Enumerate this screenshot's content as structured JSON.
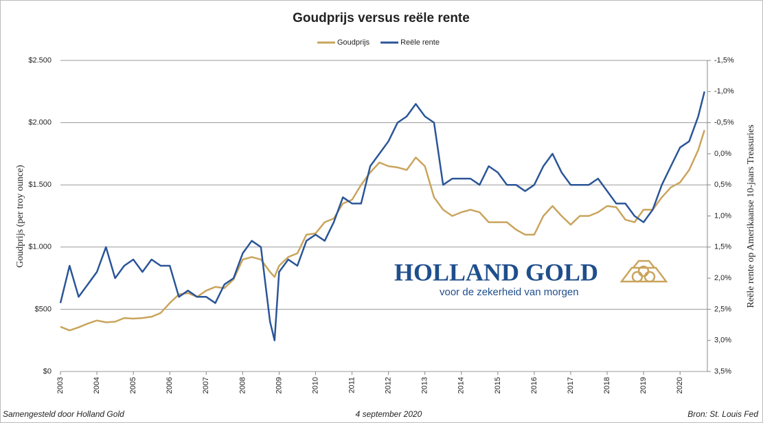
{
  "chart_data": {
    "type": "line",
    "title": "Goudprijs versus reële rente",
    "ylabel": "Goudprijs (per troy ounce)",
    "y2label": "Reële rente op Amerikaanse 10-jaars Treasuries",
    "logo": {
      "name": "HOLLAND GOLD",
      "tagline": "voor de zekerheid van morgen"
    },
    "footer": {
      "left": "Samengesteld door Holland Gold",
      "center": "4 september 2020",
      "right": "Bron: St. Louis Fed"
    },
    "x": [
      2003,
      2003.25,
      2003.5,
      2003.75,
      2004,
      2004.25,
      2004.5,
      2004.75,
      2005,
      2005.25,
      2005.5,
      2005.75,
      2006,
      2006.25,
      2006.5,
      2006.75,
      2007,
      2007.25,
      2007.5,
      2007.75,
      2008,
      2008.25,
      2008.5,
      2008.75,
      2008.875,
      2009,
      2009.25,
      2009.5,
      2009.75,
      2010,
      2010.25,
      2010.5,
      2010.75,
      2011,
      2011.25,
      2011.5,
      2011.75,
      2012,
      2012.25,
      2012.5,
      2012.75,
      2013,
      2013.25,
      2013.5,
      2013.75,
      2014,
      2014.25,
      2014.5,
      2014.75,
      2015,
      2015.25,
      2015.5,
      2015.75,
      2016,
      2016.25,
      2016.5,
      2016.75,
      2017,
      2017.25,
      2017.5,
      2017.75,
      2018,
      2018.25,
      2018.5,
      2018.75,
      2019,
      2019.25,
      2019.5,
      2019.75,
      2020,
      2020.25,
      2020.5,
      2020.67
    ],
    "series": [
      {
        "name": "Goudprijs",
        "color": "#c9a45c",
        "axis": "y",
        "values": [
          360,
          330,
          355,
          385,
          410,
          395,
          400,
          430,
          425,
          430,
          440,
          470,
          550,
          620,
          630,
          600,
          650,
          680,
          670,
          740,
          900,
          920,
          900,
          800,
          760,
          850,
          920,
          950,
          1100,
          1110,
          1200,
          1230,
          1350,
          1380,
          1500,
          1600,
          1680,
          1650,
          1640,
          1620,
          1720,
          1650,
          1400,
          1300,
          1250,
          1280,
          1300,
          1280,
          1200,
          1200,
          1200,
          1140,
          1100,
          1100,
          1250,
          1330,
          1250,
          1180,
          1250,
          1250,
          1280,
          1330,
          1320,
          1220,
          1200,
          1300,
          1300,
          1400,
          1480,
          1520,
          1620,
          1780,
          1940
        ]
      },
      {
        "name": "Reële rente",
        "color": "#2a5597",
        "axis": "y2",
        "values": [
          2.4,
          1.8,
          2.3,
          2.1,
          1.9,
          1.5,
          2.0,
          1.8,
          1.7,
          1.9,
          1.7,
          1.8,
          1.8,
          2.3,
          2.2,
          2.3,
          2.3,
          2.4,
          2.1,
          2.0,
          1.6,
          1.4,
          1.5,
          2.7,
          3.0,
          1.9,
          1.7,
          1.8,
          1.4,
          1.3,
          1.4,
          1.1,
          0.7,
          0.8,
          0.8,
          0.2,
          0.0,
          -0.2,
          -0.5,
          -0.6,
          -0.8,
          -0.6,
          -0.5,
          0.5,
          0.4,
          0.4,
          0.4,
          0.5,
          0.2,
          0.3,
          0.5,
          0.5,
          0.6,
          0.5,
          0.2,
          0.0,
          0.3,
          0.5,
          0.5,
          0.5,
          0.4,
          0.6,
          0.8,
          0.8,
          1.0,
          1.1,
          0.9,
          0.5,
          0.2,
          -0.1,
          -0.2,
          -0.6,
          -1.0
        ]
      }
    ],
    "xlim": [
      2003,
      2020.75
    ],
    "xticks": [
      2003,
      2004,
      2005,
      2006,
      2007,
      2008,
      2009,
      2010,
      2011,
      2012,
      2013,
      2014,
      2015,
      2016,
      2017,
      2018,
      2019,
      2020
    ],
    "ylim": [
      0,
      2500
    ],
    "yticks": [
      {
        "value": 0,
        "label": "$0"
      },
      {
        "value": 500,
        "label": "$500"
      },
      {
        "value": 1000,
        "label": "$1.000"
      },
      {
        "value": 1500,
        "label": "$1.500"
      },
      {
        "value": 2000,
        "label": "$2.000"
      },
      {
        "value": 2500,
        "label": "$2.500"
      }
    ],
    "y2lim": [
      3.5,
      -1.5
    ],
    "y2ticks": [
      {
        "value": -1.5,
        "label": "-1,5%"
      },
      {
        "value": -1.0,
        "label": "-1,0%"
      },
      {
        "value": -0.5,
        "label": "-0,5%"
      },
      {
        "value": 0,
        "label": "0,0%"
      },
      {
        "value": 0.5,
        "label": "0,5%"
      },
      {
        "value": 1.0,
        "label": "1,0%"
      },
      {
        "value": 1.5,
        "label": "1,5%"
      },
      {
        "value": 2.0,
        "label": "2,0%"
      },
      {
        "value": 2.5,
        "label": "2,5%"
      },
      {
        "value": 3.0,
        "label": "3,0%"
      },
      {
        "value": 3.5,
        "label": "3,5%"
      }
    ],
    "grid": true,
    "legend": "top"
  }
}
